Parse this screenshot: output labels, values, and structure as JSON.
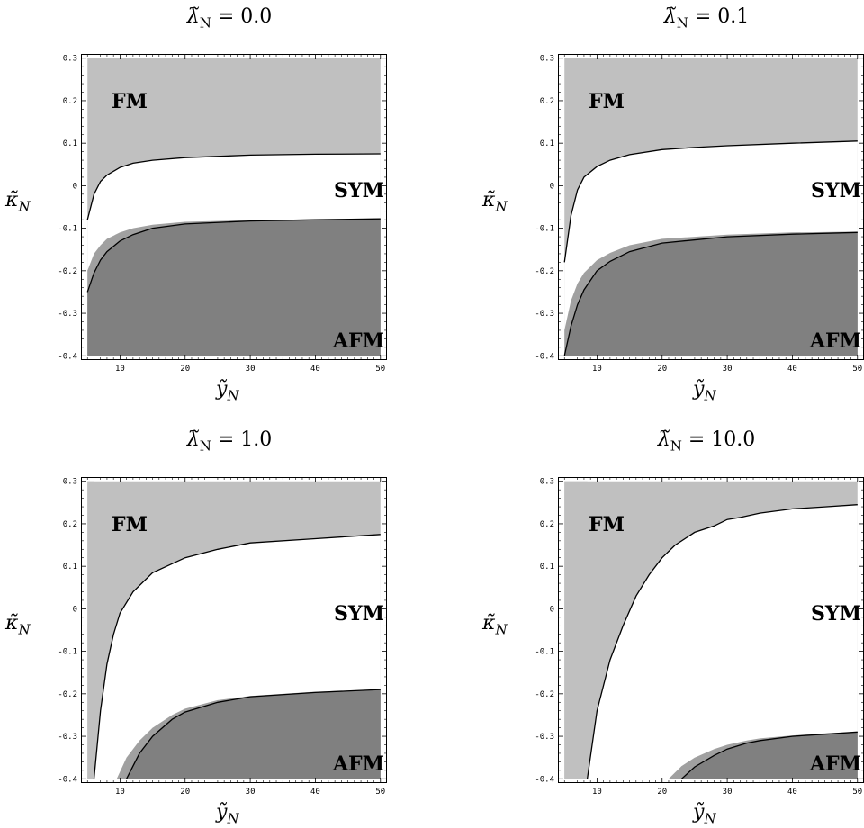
{
  "chart_data": [
    {
      "type": "area",
      "title_prefix": "λ̃",
      "title_sub": "N",
      "title_value": " = 0.0",
      "xlabel": "ỹ",
      "xlabel_sub": "N",
      "ylabel": "κ̃",
      "ylabel_sub": "N",
      "xlim": [
        4,
        51
      ],
      "ylim": [
        -0.41,
        0.31
      ],
      "xticks": [
        10,
        20,
        30,
        40,
        50
      ],
      "yticks": [
        0.3,
        0.2,
        0.1,
        0,
        -0.1,
        -0.2,
        -0.3,
        -0.4
      ],
      "grid": false,
      "region_labels": [
        "FM",
        "SYM",
        "AFM"
      ],
      "colors": {
        "FM": "#c0c0c0",
        "SYM": "#ffffff",
        "AFM": "#808080",
        "AFM_band": "#a0a0a0"
      },
      "fm_boundary": {
        "x": [
          5,
          6,
          7,
          8,
          10,
          12,
          15,
          20,
          30,
          40,
          50
        ],
        "y": [
          -0.08,
          -0.02,
          0.01,
          0.025,
          0.043,
          0.053,
          0.06,
          0.066,
          0.072,
          0.074,
          0.075
        ]
      },
      "afm_upper": {
        "x": [
          5,
          6,
          7,
          8,
          10,
          12,
          15,
          20,
          30,
          40,
          50
        ],
        "y": [
          -0.2,
          -0.16,
          -0.14,
          -0.125,
          -0.11,
          -0.1,
          -0.092,
          -0.085,
          -0.081,
          -0.079,
          -0.077
        ]
      },
      "afm_line": {
        "x": [
          5,
          6,
          7,
          8,
          10,
          12,
          15,
          20,
          30,
          40,
          50
        ],
        "y": [
          -0.25,
          -0.205,
          -0.175,
          -0.155,
          -0.13,
          -0.115,
          -0.1,
          -0.09,
          -0.083,
          -0.08,
          -0.078
        ]
      }
    },
    {
      "type": "area",
      "title_prefix": "λ̃",
      "title_sub": "N",
      "title_value": " = 0.1",
      "xlabel": "ỹ",
      "xlabel_sub": "N",
      "ylabel": "κ̃",
      "ylabel_sub": "N",
      "xlim": [
        4,
        51
      ],
      "ylim": [
        -0.41,
        0.31
      ],
      "xticks": [
        10,
        20,
        30,
        40,
        50
      ],
      "yticks": [
        0.3,
        0.2,
        0.1,
        0,
        -0.1,
        -0.2,
        -0.3,
        -0.4
      ],
      "grid": false,
      "region_labels": [
        "FM",
        "SYM",
        "AFM"
      ],
      "colors": {
        "FM": "#c0c0c0",
        "SYM": "#ffffff",
        "AFM": "#808080",
        "AFM_band": "#a0a0a0"
      },
      "fm_boundary": {
        "x": [
          5,
          6,
          7,
          8,
          10,
          12,
          15,
          20,
          25,
          30,
          40,
          50
        ],
        "y": [
          -0.18,
          -0.07,
          -0.01,
          0.02,
          0.045,
          0.06,
          0.073,
          0.085,
          0.09,
          0.094,
          0.1,
          0.105
        ]
      },
      "afm_upper": {
        "x": [
          5,
          6,
          7,
          8,
          10,
          12,
          15,
          20,
          30,
          40,
          50
        ],
        "y": [
          -0.34,
          -0.27,
          -0.23,
          -0.205,
          -0.175,
          -0.158,
          -0.14,
          -0.125,
          -0.115,
          -0.11,
          -0.108
        ]
      },
      "afm_line": {
        "x": [
          5,
          6,
          7,
          8,
          10,
          12,
          15,
          20,
          30,
          40,
          50
        ],
        "y": [
          -0.4,
          -0.33,
          -0.28,
          -0.245,
          -0.2,
          -0.178,
          -0.155,
          -0.135,
          -0.12,
          -0.114,
          -0.11
        ]
      }
    },
    {
      "type": "area",
      "title_prefix": "λ̃",
      "title_sub": "N",
      "title_value": " = 1.0",
      "xlabel": "ỹ",
      "xlabel_sub": "N",
      "ylabel": "κ̃",
      "ylabel_sub": "N",
      "xlim": [
        4,
        51
      ],
      "ylim": [
        -0.41,
        0.31
      ],
      "xticks": [
        10,
        20,
        30,
        40,
        50
      ],
      "yticks": [
        0.3,
        0.2,
        0.1,
        0,
        -0.1,
        -0.2,
        -0.3,
        -0.4
      ],
      "grid": false,
      "region_labels": [
        "FM",
        "SYM",
        "AFM"
      ],
      "colors": {
        "FM": "#c0c0c0",
        "SYM": "#ffffff",
        "AFM": "#808080",
        "AFM_band": "#a0a0a0"
      },
      "fm_boundary": {
        "x": [
          6,
          7,
          8,
          9,
          10,
          12,
          15,
          20,
          25,
          30,
          40,
          50
        ],
        "y": [
          -0.4,
          -0.24,
          -0.13,
          -0.06,
          -0.01,
          0.04,
          0.085,
          0.12,
          0.14,
          0.155,
          0.165,
          0.175
        ]
      },
      "afm_upper": {
        "x": [
          9.5,
          11,
          13,
          15,
          18,
          20,
          25,
          30,
          40,
          50
        ],
        "y": [
          -0.4,
          -0.35,
          -0.31,
          -0.28,
          -0.25,
          -0.235,
          -0.215,
          -0.205,
          -0.195,
          -0.19
        ]
      },
      "afm_line": {
        "x": [
          11,
          13,
          15,
          18,
          20,
          25,
          30,
          40,
          50
        ],
        "y": [
          -0.4,
          -0.34,
          -0.3,
          -0.26,
          -0.243,
          -0.22,
          -0.207,
          -0.197,
          -0.19
        ]
      }
    },
    {
      "type": "area",
      "title_prefix": "λ̃",
      "title_sub": "N",
      "title_value": " = 10.0",
      "xlabel": "ỹ",
      "xlabel_sub": "N",
      "ylabel": "κ̃",
      "ylabel_sub": "N",
      "xlim": [
        4,
        51
      ],
      "ylim": [
        -0.41,
        0.31
      ],
      "xticks": [
        10,
        20,
        30,
        40,
        50
      ],
      "yticks": [
        0.3,
        0.2,
        0.1,
        0,
        -0.1,
        -0.2,
        -0.3,
        -0.4
      ],
      "grid": false,
      "region_labels": [
        "FM",
        "SYM",
        "AFM"
      ],
      "colors": {
        "FM": "#c0c0c0",
        "SYM": "#ffffff",
        "AFM": "#808080",
        "AFM_band": "#a0a0a0"
      },
      "fm_boundary": {
        "x": [
          8.5,
          10,
          12,
          14,
          16,
          18,
          20,
          22,
          25,
          28,
          30,
          32,
          35,
          40,
          45,
          50
        ],
        "y": [
          -0.4,
          -0.24,
          -0.12,
          -0.04,
          0.03,
          0.08,
          0.12,
          0.15,
          0.18,
          0.195,
          0.21,
          0.215,
          0.225,
          0.235,
          0.24,
          0.245
        ]
      },
      "afm_upper": {
        "x": [
          21,
          23,
          25,
          28,
          30,
          33,
          35,
          40,
          45,
          50
        ],
        "y": [
          -0.4,
          -0.37,
          -0.35,
          -0.33,
          -0.32,
          -0.31,
          -0.305,
          -0.298,
          -0.293,
          -0.29
        ]
      },
      "afm_line": {
        "x": [
          23,
          25,
          28,
          30,
          33,
          35,
          40,
          45,
          50
        ],
        "y": [
          -0.4,
          -0.372,
          -0.345,
          -0.33,
          -0.316,
          -0.31,
          -0.3,
          -0.295,
          -0.29
        ]
      }
    }
  ]
}
